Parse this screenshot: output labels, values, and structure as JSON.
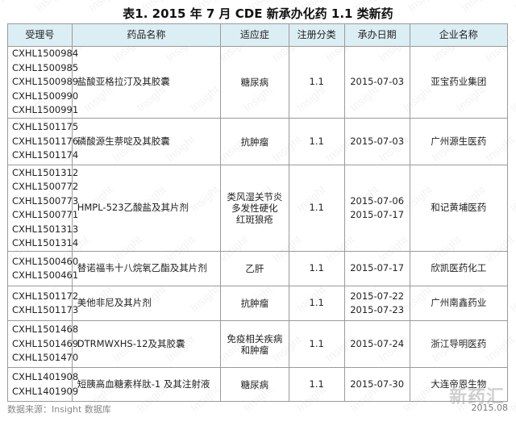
{
  "title": "表1. 2015 年 7 月 CDE 新承办化药 1.1 类新药",
  "headers": [
    "受理号",
    "药品名称",
    "适应症",
    "注册分类",
    "承办日期",
    "企业名称"
  ],
  "rows": [
    {
      "ids": [
        "CXHL1500984",
        "CXHL1500985",
        "CXHL1500989",
        "CXHL1500990",
        "CXHL1500991"
      ],
      "name": "盐酸亚格拉汀及其胶囊",
      "indication": [
        "糖尿病"
      ],
      "class": "1.1",
      "dates": [
        "2015-07-03"
      ],
      "company": "亚宝药业集团"
    },
    {
      "ids": [
        "CXHL1501175",
        "CXHL1501176",
        "CXHL1501174"
      ],
      "name": "磷酸源生萘啶及其胶囊",
      "indication": [
        "抗肿瘤"
      ],
      "class": "1.1",
      "dates": [
        "2015-07-03"
      ],
      "company": "广州源生医药"
    },
    {
      "ids": [
        "CXHL1501312",
        "CXHL1500772",
        "CXHL1500773",
        "CXHL1500771",
        "CXHL1501313",
        "CXHL1501314"
      ],
      "name": "HMPL-523乙酸盐及其片剂",
      "indication": [
        "类风湿关节炎",
        "多发性硬化",
        "红斑狼疮"
      ],
      "class": "1.1",
      "dates": [
        "2015-07-06",
        "2015-07-17"
      ],
      "company": "和记黄埔医药"
    },
    {
      "ids": [
        "CXHL1500460",
        "CXHL1500461"
      ],
      "name": "替诺福韦十八烷氧乙酯及其片剂",
      "indication": [
        "乙肝"
      ],
      "class": "1.1",
      "dates": [
        "2015-07-17"
      ],
      "company": "欣凯医药化工"
    },
    {
      "ids": [
        "CXHL1501172",
        "CXHL1501173"
      ],
      "name": "美他非尼及其片剂",
      "indication": [
        "抗肿瘤"
      ],
      "class": "1.1",
      "dates": [
        "2015-07-22",
        "2015-07-23"
      ],
      "company": "广州南鑫药业"
    },
    {
      "ids": [
        "CXHL1501468",
        "CXHL1501469",
        "CXHL1501470"
      ],
      "name": "DTRMWXHS-12及其胶囊",
      "indication": [
        "免疫相关疾病",
        "和肿瘤"
      ],
      "class": "1.1",
      "dates": [
        "2015-07-24"
      ],
      "company": "浙江导明医药"
    },
    {
      "ids": [
        "CXHL1401908",
        "CXHL1401909"
      ],
      "name": "短胰高血糖素样肽-1 及其注射液",
      "indication": [
        "糖尿病"
      ],
      "class": "1.1",
      "dates": [
        "2015-07-30"
      ],
      "company": "大连帝恩生物"
    }
  ],
  "footer": {
    "source": "数据来源：Insight 数据库",
    "date": "2015.08"
  },
  "watermark": "Insight",
  "logo": "新药汇",
  "colors": {
    "header_bg": "#dbeef3",
    "border": "#9a9a9a"
  }
}
